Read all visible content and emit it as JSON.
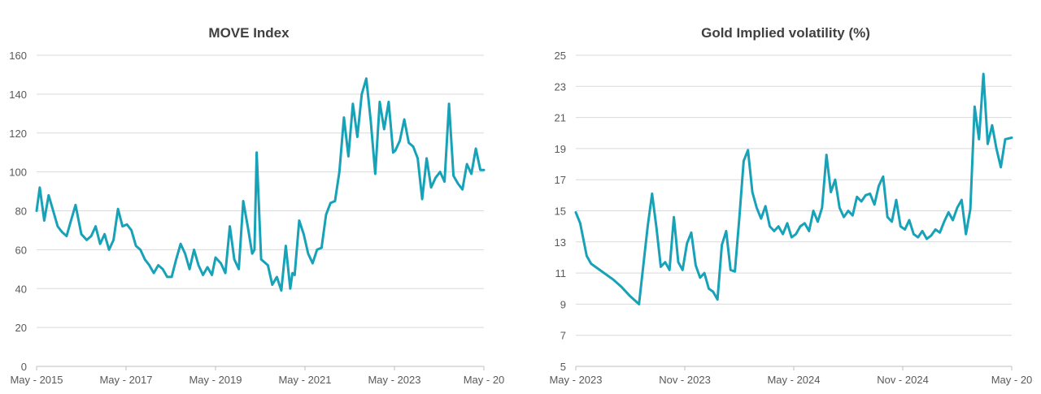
{
  "colors": {
    "series": "#17a2b8",
    "grid": "#d9d9d9",
    "text": "#595959",
    "title": "#404040"
  },
  "chart_data": [
    {
      "type": "line",
      "title": "MOVE Index",
      "xlabel": "",
      "ylabel": "",
      "xlim": [
        2015.33,
        2025.33
      ],
      "ylim": [
        0,
        160
      ],
      "yticks": [
        0,
        20,
        40,
        60,
        80,
        100,
        120,
        140,
        160
      ],
      "xticks": [
        {
          "value": 2015.33,
          "label": "May - 2015"
        },
        {
          "value": 2017.33,
          "label": "May - 2017"
        },
        {
          "value": 2019.33,
          "label": "May - 2019"
        },
        {
          "value": 2021.33,
          "label": "May - 2021"
        },
        {
          "value": 2023.33,
          "label": "May - 2023"
        },
        {
          "value": 2025.33,
          "label": "May - 20"
        }
      ],
      "grid": true,
      "series": [
        {
          "name": "MOVE Index",
          "x": [
            2015.33,
            2015.4,
            2015.5,
            2015.6,
            2015.7,
            2015.8,
            2015.9,
            2016.0,
            2016.1,
            2016.2,
            2016.33,
            2016.45,
            2016.55,
            2016.65,
            2016.75,
            2016.85,
            2016.95,
            2017.05,
            2017.15,
            2017.25,
            2017.35,
            2017.45,
            2017.55,
            2017.65,
            2017.75,
            2017.85,
            2017.95,
            2018.05,
            2018.15,
            2018.25,
            2018.35,
            2018.45,
            2018.55,
            2018.65,
            2018.75,
            2018.85,
            2018.95,
            2019.05,
            2019.15,
            2019.25,
            2019.33,
            2019.45,
            2019.55,
            2019.65,
            2019.75,
            2019.85,
            2019.95,
            2020.05,
            2020.15,
            2020.2,
            2020.25,
            2020.35,
            2020.5,
            2020.6,
            2020.7,
            2020.8,
            2020.9,
            2021.0,
            2021.05,
            2021.1,
            2021.2,
            2021.3,
            2021.4,
            2021.5,
            2021.6,
            2021.7,
            2021.8,
            2021.9,
            2022.0,
            2022.1,
            2022.2,
            2022.3,
            2022.4,
            2022.5,
            2022.6,
            2022.7,
            2022.8,
            2022.9,
            2023.0,
            2023.1,
            2023.2,
            2023.3,
            2023.35,
            2023.45,
            2023.55,
            2023.65,
            2023.75,
            2023.85,
            2023.95,
            2024.05,
            2024.15,
            2024.25,
            2024.35,
            2024.45,
            2024.55,
            2024.65,
            2024.75,
            2024.85,
            2024.95,
            2025.05,
            2025.15,
            2025.25,
            2025.33
          ],
          "y": [
            80,
            92,
            75,
            88,
            80,
            72,
            69,
            67,
            75,
            83,
            68,
            65,
            67,
            72,
            63,
            68,
            60,
            65,
            81,
            72,
            73,
            70,
            62,
            60,
            55,
            52,
            48,
            52,
            50,
            46,
            46,
            55,
            63,
            58,
            50,
            60,
            52,
            47,
            51,
            47,
            56,
            53,
            48,
            72,
            55,
            50,
            85,
            72,
            58,
            60,
            110,
            55,
            52,
            42,
            46,
            39,
            62,
            40,
            48,
            47,
            75,
            68,
            58,
            53,
            60,
            61,
            78,
            84,
            85,
            100,
            128,
            108,
            135,
            118,
            140,
            148,
            126,
            99,
            136,
            122,
            136,
            110,
            111,
            116,
            127,
            115,
            113,
            107,
            86,
            107,
            92,
            97,
            100,
            95,
            135,
            98,
            94,
            91,
            104,
            99,
            112,
            101,
            101
          ]
        }
      ]
    },
    {
      "type": "line",
      "title": "Gold Implied volatility (%)",
      "xlabel": "",
      "ylabel": "",
      "xlim": [
        2023.33,
        2025.33
      ],
      "ylim": [
        5,
        25
      ],
      "yticks": [
        5,
        7,
        9,
        11,
        13,
        15,
        17,
        19,
        21,
        23,
        25
      ],
      "xticks": [
        {
          "value": 2023.33,
          "label": "May - 2023"
        },
        {
          "value": 2023.83,
          "label": "Nov - 2023"
        },
        {
          "value": 2024.33,
          "label": "May - 2024"
        },
        {
          "value": 2024.83,
          "label": "Nov - 2024"
        },
        {
          "value": 2025.33,
          "label": "May - 20"
        }
      ],
      "grid": true,
      "series": [
        {
          "name": "Gold Implied volatility",
          "x": [
            2023.33,
            2023.35,
            2023.38,
            2023.4,
            2023.43,
            2023.46,
            2023.5,
            2023.54,
            2023.58,
            2023.62,
            2023.66,
            2023.68,
            2023.7,
            2023.72,
            2023.74,
            2023.76,
            2023.78,
            2023.8,
            2023.82,
            2023.84,
            2023.86,
            2023.88,
            2023.9,
            2023.92,
            2023.94,
            2023.96,
            2023.98,
            2024.0,
            2024.02,
            2024.04,
            2024.06,
            2024.08,
            2024.1,
            2024.12,
            2024.14,
            2024.16,
            2024.18,
            2024.2,
            2024.22,
            2024.24,
            2024.26,
            2024.28,
            2024.3,
            2024.32,
            2024.34,
            2024.36,
            2024.38,
            2024.4,
            2024.42,
            2024.44,
            2024.46,
            2024.48,
            2024.5,
            2024.52,
            2024.54,
            2024.56,
            2024.58,
            2024.6,
            2024.62,
            2024.64,
            2024.66,
            2024.68,
            2024.7,
            2024.72,
            2024.74,
            2024.76,
            2024.78,
            2024.8,
            2024.82,
            2024.84,
            2024.86,
            2024.88,
            2024.9,
            2024.92,
            2024.94,
            2024.96,
            2024.98,
            2025.0,
            2025.02,
            2025.04,
            2025.06,
            2025.08,
            2025.1,
            2025.12,
            2025.14,
            2025.16,
            2025.18,
            2025.2,
            2025.22,
            2025.24,
            2025.26,
            2025.28,
            2025.3,
            2025.33
          ],
          "y": [
            14.9,
            14.2,
            12.1,
            11.6,
            11.3,
            11.0,
            10.6,
            10.1,
            9.5,
            9.0,
            14.0,
            16.1,
            13.9,
            11.4,
            11.7,
            11.2,
            14.6,
            11.7,
            11.2,
            12.9,
            13.6,
            11.5,
            10.7,
            11.0,
            10.0,
            9.8,
            9.3,
            12.8,
            13.7,
            11.2,
            11.1,
            14.5,
            18.2,
            18.9,
            16.2,
            15.2,
            14.5,
            15.3,
            14.0,
            13.7,
            14.0,
            13.5,
            14.2,
            13.3,
            13.5,
            14.0,
            14.2,
            13.7,
            15.0,
            14.3,
            15.2,
            18.6,
            16.2,
            17.0,
            15.2,
            14.6,
            15.0,
            14.7,
            15.9,
            15.6,
            16.0,
            16.1,
            15.4,
            16.6,
            17.2,
            14.6,
            14.3,
            15.7,
            14.0,
            13.8,
            14.4,
            13.5,
            13.3,
            13.7,
            13.2,
            13.4,
            13.8,
            13.6,
            14.3,
            14.9,
            14.4,
            15.2,
            15.7,
            13.5,
            15.1,
            21.7,
            19.6,
            23.8,
            19.3,
            20.5,
            19.0,
            17.8,
            19.6,
            19.7
          ]
        }
      ]
    }
  ]
}
